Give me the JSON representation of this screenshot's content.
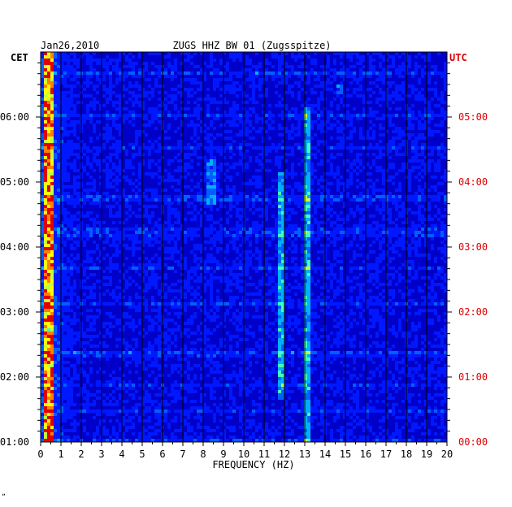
{
  "header": {
    "date": "Jan26,2010",
    "station": "ZUGS HHZ BW 01 (Zugsspitze)",
    "left_zone": "CET",
    "right_zone": "UTC",
    "footer_mark": "ˮ"
  },
  "colors": {
    "background_plot": "#0000c8",
    "grid": "#000000",
    "utc_label": "#e00000",
    "cet_label": "#000000",
    "palette": [
      "#0000a0",
      "#0000d0",
      "#0018ff",
      "#0060ff",
      "#00b0ff",
      "#40ffc0",
      "#c0ff40",
      "#ffff00",
      "#ff8000",
      "#e00000"
    ]
  },
  "chart_data": {
    "type": "heatmap",
    "title": "ZUGS HHZ BW 01 (Zugsspitze)",
    "date": "Jan26,2010",
    "xlabel": "FREQUENCY (HZ)",
    "x_ticks": [
      "0",
      "1",
      "2",
      "3",
      "4",
      "5",
      "6",
      "7",
      "8",
      "9",
      "10",
      "11",
      "12",
      "13",
      "14",
      "15",
      "16",
      "17",
      "18",
      "19",
      "20"
    ],
    "xlim": [
      0,
      20
    ],
    "y_ticks_cet": [
      "01:00",
      "02:00",
      "03:00",
      "04:00",
      "05:00",
      "06:00"
    ],
    "y_ticks_utc": [
      "00:00",
      "01:00",
      "02:00",
      "03:00",
      "04:00",
      "05:00"
    ],
    "y_range_cet_hours": [
      1.0,
      7.0
    ],
    "grid": true,
    "notable_features": [
      {
        "frequency_hz": [
          0.2,
          0.7
        ],
        "intensity": "high",
        "span": "full"
      },
      {
        "frequency_hz": 11.9,
        "intensity": "medium",
        "span_cet": [
          "01:40",
          "05:10"
        ]
      },
      {
        "frequency_hz": 13.1,
        "intensity": "medium",
        "span_cet": [
          "01:00",
          "06:10"
        ]
      },
      {
        "frequency_hz": 8.4,
        "intensity": "low",
        "span_cet": [
          "04:40",
          "05:20"
        ]
      },
      {
        "frequency_hz": 14.7,
        "intensity": "low",
        "span_cet": [
          "06:20",
          "06:30"
        ]
      }
    ]
  }
}
